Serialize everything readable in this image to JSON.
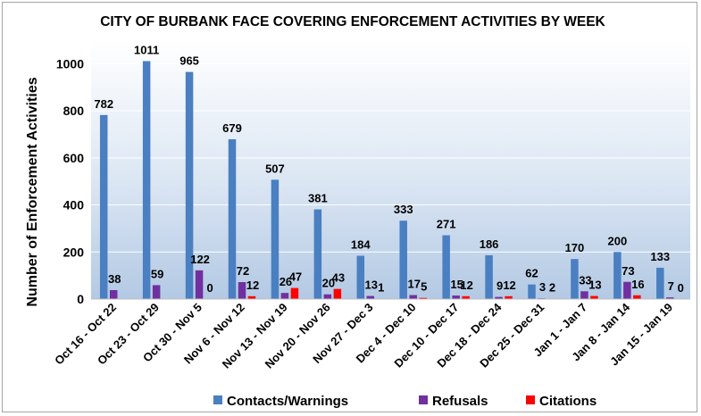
{
  "chart_data": {
    "type": "bar",
    "title": "CITY OF BURBANK FACE COVERING ENFORCEMENT ACTIVITIES BY WEEK",
    "xlabel": "",
    "ylabel": "Number of Enforcement Activities",
    "ylim": [
      0,
      1100
    ],
    "yticks": [
      0,
      200,
      400,
      600,
      800,
      1000
    ],
    "legend_position": "bottom",
    "categories": [
      "Oct 16 - Oct 22",
      "Oct 23 - Oct 29",
      "Oct 30 - Nov 5",
      "Nov 6 - Nov 12",
      "Nov 13 - Nov 19",
      "Nov 20 - Nov 26",
      "Nov 27 - Dec 3",
      "Dec 4 - Dec 10",
      "Dec 10 - Dec 17",
      "Dec 18 - Dec 24",
      "Dec 25 - Dec 31",
      "Jan 1 - Jan 7",
      "Jan 8 - Jan 14",
      "Jan 15 - Jan 19"
    ],
    "series": [
      {
        "name": "Contacts/Warnings",
        "color": "#4a7fc1",
        "values": [
          782,
          1011,
          965,
          679,
          507,
          381,
          184,
          333,
          271,
          186,
          62,
          170,
          200,
          133
        ]
      },
      {
        "name": "Refusals",
        "color": "#7030a0",
        "values": [
          38,
          59,
          122,
          72,
          26,
          20,
          13,
          17,
          15,
          9,
          3,
          33,
          73,
          7
        ]
      },
      {
        "name": "Citations",
        "color": "#ff0000",
        "values": [
          null,
          null,
          0,
          12,
          47,
          43,
          1,
          5,
          12,
          12,
          2,
          13,
          16,
          0
        ]
      }
    ]
  }
}
